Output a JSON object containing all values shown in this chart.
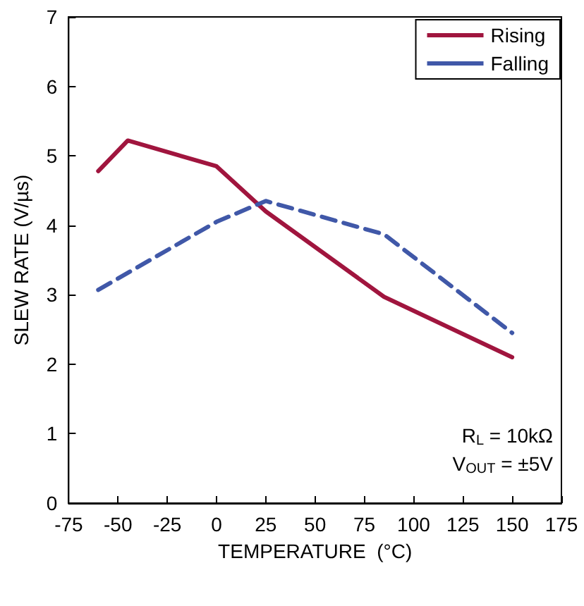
{
  "chart_data": {
    "type": "line",
    "xlabel": "TEMPERATURE  (°C)",
    "ylabel": "SLEW RATE (V/µs)",
    "xlim": [
      -75,
      175
    ],
    "xticks": [
      -75,
      -50,
      -25,
      0,
      25,
      50,
      75,
      100,
      125,
      150,
      175
    ],
    "ylim": [
      0,
      7
    ],
    "yticks": [
      0,
      1,
      2,
      3,
      4,
      5,
      6,
      7
    ],
    "grid": false,
    "legend": "top right",
    "marker": "none",
    "series": [
      {
        "name": "Rising",
        "color": "#a0153e",
        "line_style": "solid",
        "x": [
          -60,
          -45,
          0,
          25,
          85,
          150
        ],
        "values": [
          4.78,
          5.22,
          4.85,
          4.2,
          2.97,
          2.1
        ]
      },
      {
        "name": "Falling",
        "color": "#4058a8",
        "line_style": "dashed",
        "x": [
          -60,
          0,
          25,
          85,
          150
        ],
        "values": [
          3.07,
          4.05,
          4.35,
          3.87,
          2.45
        ]
      }
    ],
    "annotations": [
      "R$_{L}$ = 10kΩ",
      "V$_{OUT}$ = ±5V"
    ]
  }
}
